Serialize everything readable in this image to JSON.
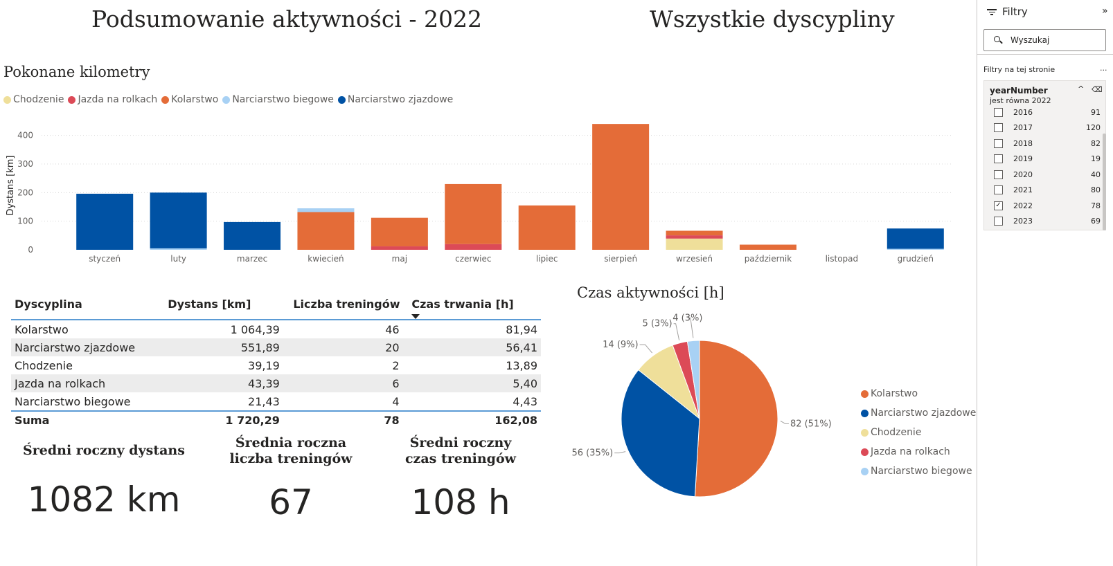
{
  "header": {
    "title_left": "Podsumowanie aktywności - 2022",
    "title_right": "Wszystkie dyscypliny"
  },
  "colors": {
    "Chodzenie": "#efdf9a",
    "Jazda na rolkach": "#dc4a57",
    "Kolarstwo": "#e46c38",
    "Narciarstwo biegowe": "#a8d1f4",
    "Narciarstwo zjazdowe": "#0052a4"
  },
  "bar_section": {
    "title": "Pokonane kilometry",
    "legend": [
      "Chodzenie",
      "Jazda na rolkach",
      "Kolarstwo",
      "Narciarstwo biegowe",
      "Narciarstwo zjazdowe"
    ]
  },
  "pie_section": {
    "title": "Czas aktywności [h]",
    "legend": [
      "Kolarstwo",
      "Narciarstwo zjazdowe",
      "Chodzenie",
      "Jazda na rolkach",
      "Narciarstwo biegowe"
    ]
  },
  "chart_data": [
    {
      "type": "bar",
      "stacked": true,
      "title": "Pokonane kilometry",
      "ylabel": "Dystans [km]",
      "xlabel": "",
      "ylim": [
        0,
        450
      ],
      "yticks": [
        0,
        100,
        200,
        300,
        400
      ],
      "grid": true,
      "legend_position": "top-left",
      "categories": [
        "styczeń",
        "luty",
        "marzec",
        "kwiecień",
        "maj",
        "czerwiec",
        "lipiec",
        "sierpień",
        "wrzesień",
        "październik",
        "listopad",
        "grudzień"
      ],
      "series": [
        {
          "name": "Chodzenie",
          "values": [
            0,
            0,
            0,
            0,
            0,
            0,
            0,
            0,
            39.19,
            0,
            0,
            0
          ]
        },
        {
          "name": "Jazda na rolkach",
          "values": [
            0,
            0,
            0,
            0,
            12,
            20,
            0,
            0,
            11.39,
            0,
            0,
            0
          ]
        },
        {
          "name": "Kolarstwo",
          "values": [
            0,
            0,
            0,
            132,
            100,
            210,
            155,
            440,
            16,
            18,
            0,
            0
          ]
        },
        {
          "name": "Narciarstwo biegowe",
          "values": [
            0,
            5,
            0,
            13,
            0,
            0,
            0,
            0,
            0,
            0,
            0,
            3.43
          ]
        },
        {
          "name": "Narciarstwo zjazdowe",
          "values": [
            196,
            195,
            97,
            0,
            0,
            0,
            0,
            0,
            0,
            0,
            0,
            71
          ]
        }
      ]
    },
    {
      "type": "pie",
      "title": "Czas aktywności [h]",
      "slices": [
        {
          "name": "Kolarstwo",
          "value": 82,
          "label": "82 (51%)"
        },
        {
          "name": "Narciarstwo zjazdowe",
          "value": 56,
          "label": "56 (35%)"
        },
        {
          "name": "Chodzenie",
          "value": 14,
          "label": "14 (9%)"
        },
        {
          "name": "Jazda na rolkach",
          "value": 5,
          "label": "5 (3%)"
        },
        {
          "name": "Narciarstwo biegowe",
          "value": 4,
          "label": "4 (3%)"
        }
      ]
    }
  ],
  "table": {
    "headers": [
      "Dyscyplina",
      "Dystans [km]",
      "Liczba treningów",
      "Czas trwania [h]"
    ],
    "rows": [
      [
        "Kolarstwo",
        "1 064,39",
        "46",
        "81,94"
      ],
      [
        "Narciarstwo zjazdowe",
        "551,89",
        "20",
        "56,41"
      ],
      [
        "Chodzenie",
        "39,19",
        "2",
        "13,89"
      ],
      [
        "Jazda na rolkach",
        "43,39",
        "6",
        "5,40"
      ],
      [
        "Narciarstwo biegowe",
        "21,43",
        "4",
        "4,43"
      ]
    ],
    "total": [
      "Suma",
      "1 720,29",
      "78",
      "162,08"
    ]
  },
  "kpis": [
    {
      "label_line1": "Średni roczny dystans",
      "label_line2": "",
      "value": "1082 km"
    },
    {
      "label_line1": "Średnia roczna",
      "label_line2": "liczba treningów",
      "value": "67"
    },
    {
      "label_line1": "Średni roczny",
      "label_line2": "czas treningów",
      "value": "108 h"
    }
  ],
  "filters_pane": {
    "title": "Filtry",
    "collapse_icon": "chevron-right-icon",
    "search_placeholder": "Wyszukaj",
    "subtitle": "Filtry na tej stronie",
    "more": "...",
    "card": {
      "field": "yearNumber",
      "condition": "jest równa 2022",
      "items": [
        {
          "year": "2016",
          "count": "91",
          "checked": false
        },
        {
          "year": "2017",
          "count": "120",
          "checked": false
        },
        {
          "year": "2018",
          "count": "82",
          "checked": false
        },
        {
          "year": "2019",
          "count": "19",
          "checked": false
        },
        {
          "year": "2020",
          "count": "40",
          "checked": false
        },
        {
          "year": "2021",
          "count": "80",
          "checked": false
        },
        {
          "year": "2022",
          "count": "78",
          "checked": true
        },
        {
          "year": "2023",
          "count": "69",
          "checked": false
        }
      ]
    }
  }
}
